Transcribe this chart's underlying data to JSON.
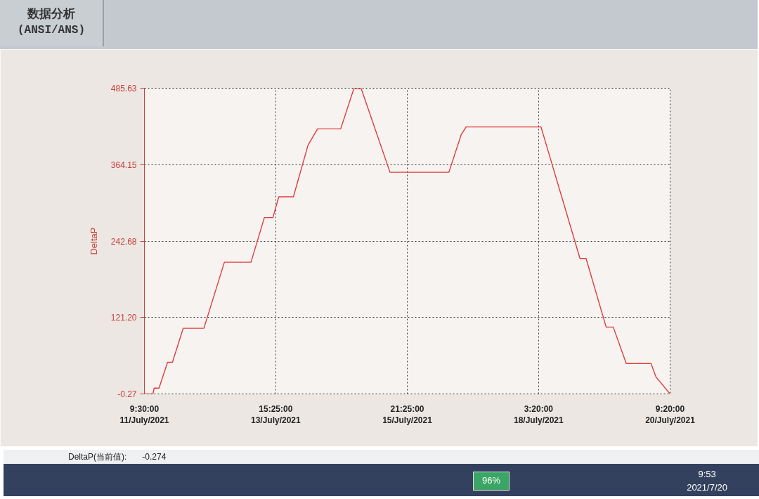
{
  "chart_data": {
    "type": "line",
    "title": "数据分析",
    "subtitle": "(ANSI/ANS)",
    "ylabel": "DeltaP",
    "x": [
      "2021-07-11T09:30",
      "2021-07-11T13:00",
      "2021-07-11T13:30",
      "2021-07-11T15:30",
      "2021-07-11T19:00",
      "2021-07-11T21:00",
      "2021-07-12T01:25",
      "2021-07-12T09:55",
      "2021-07-12T18:20",
      "2021-07-13T05:15",
      "2021-07-13T10:45",
      "2021-07-13T14:15",
      "2021-07-13T16:40",
      "2021-07-13T22:40",
      "2021-07-14T04:40",
      "2021-07-14T08:35",
      "2021-07-14T18:05",
      "2021-07-14T23:30",
      "2021-07-15T02:30",
      "2021-07-15T14:20",
      "2021-07-16T14:30",
      "2021-07-16T19:35",
      "2021-07-16T21:35",
      "2021-07-18T04:20",
      "2021-07-18T20:20",
      "2021-07-18T22:50",
      "2021-07-19T07:05",
      "2021-07-19T10:00",
      "2021-07-19T15:20",
      "2021-07-20T01:30",
      "2021-07-20T03:30",
      "2021-07-20T09:20"
    ],
    "series": [
      {
        "color": "#e23b3b",
        "values": [
          -0.27,
          -0.27,
          9,
          9,
          50,
          50,
          104,
          104,
          209,
          209,
          280,
          280,
          313,
          313,
          395,
          421,
          421,
          485,
          485,
          352,
          352,
          412,
          424,
          424,
          215,
          215,
          106,
          106,
          48,
          48,
          27,
          -0.27
        ]
      }
    ],
    "xlim": [
      "2021-07-11T09:30",
      "2021-07-20T09:20"
    ],
    "xticks": [
      {
        "value": "2021-07-11T09:30",
        "label": "9:30:00\n11/July/2021"
      },
      {
        "value": "2021-07-13T15:25",
        "label": "15:25:00\n13/July/2021"
      },
      {
        "value": "2021-07-15T21:25",
        "label": "21:25:00\n15/July/2021"
      },
      {
        "value": "2021-07-18T03:20",
        "label": "3:20:00\n18/July/2021"
      },
      {
        "value": "2021-07-20T09:20",
        "label": "9:20:00\n20/July/2021"
      }
    ],
    "ylim": [
      -0.27,
      485.63
    ],
    "yticks": [
      -0.27,
      {
        "value": 121.2,
        "label": "121.20"
      },
      242.68,
      364.15,
      485.63
    ],
    "grid": true,
    "annotations": [
      "DeltaP(当前值):",
      "-0.274",
      "96%",
      "9:53",
      "2021/7/20"
    ]
  }
}
